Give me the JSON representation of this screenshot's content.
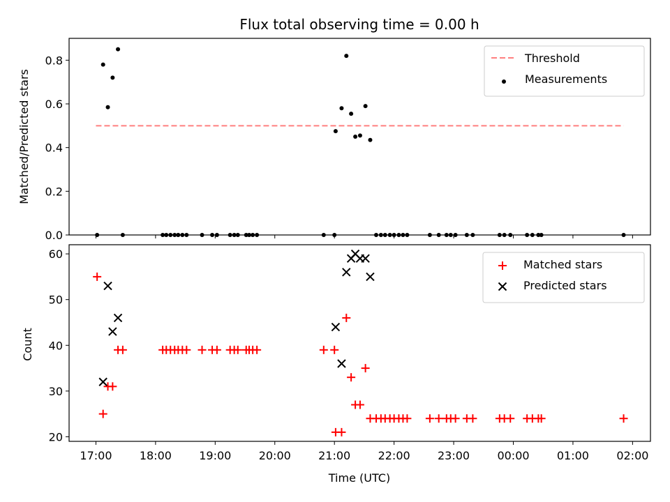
{
  "chart_data": [
    {
      "type": "scatter",
      "title": "Flux total observing time = 0.00 h",
      "ylabel": "Matched/Predicted stars",
      "xlim_hours": [
        16.55,
        26.3
      ],
      "ylim": [
        0.0,
        0.9
      ],
      "yticks": [
        0.0,
        0.2,
        0.4,
        0.6,
        0.8
      ],
      "ytick_labels": [
        "0.0",
        "0.2",
        "0.4",
        "0.6",
        "0.8"
      ],
      "legend_position": "top-right",
      "threshold": {
        "name": "Threshold",
        "value": 0.5,
        "x_range": [
          17.0,
          25.85
        ],
        "color": "#ff7f7f",
        "style": "dashed"
      },
      "series": [
        {
          "name": "Measurements",
          "color": "#000000",
          "marker": "dot",
          "points": [
            [
              17.02,
              0.0
            ],
            [
              17.12,
              0.78
            ],
            [
              17.2,
              0.585
            ],
            [
              17.28,
              0.72
            ],
            [
              17.37,
              0.85
            ],
            [
              17.45,
              0.0
            ],
            [
              18.12,
              0.0
            ],
            [
              18.18,
              0.0
            ],
            [
              18.25,
              0.0
            ],
            [
              18.32,
              0.0
            ],
            [
              18.38,
              0.0
            ],
            [
              18.45,
              0.0
            ],
            [
              18.52,
              0.0
            ],
            [
              18.78,
              0.0
            ],
            [
              18.95,
              0.0
            ],
            [
              19.03,
              0.0
            ],
            [
              19.25,
              0.0
            ],
            [
              19.32,
              0.0
            ],
            [
              19.38,
              0.0
            ],
            [
              19.52,
              0.0
            ],
            [
              19.57,
              0.0
            ],
            [
              19.63,
              0.0
            ],
            [
              19.7,
              0.0
            ],
            [
              20.82,
              0.0
            ],
            [
              21.0,
              0.0
            ],
            [
              21.02,
              0.475
            ],
            [
              21.12,
              0.58
            ],
            [
              21.2,
              0.82
            ],
            [
              21.28,
              0.555
            ],
            [
              21.35,
              0.45
            ],
            [
              21.43,
              0.455
            ],
            [
              21.52,
              0.59
            ],
            [
              21.6,
              0.435
            ],
            [
              21.7,
              0.0
            ],
            [
              21.78,
              0.0
            ],
            [
              21.85,
              0.0
            ],
            [
              21.93,
              0.0
            ],
            [
              22.0,
              0.0
            ],
            [
              22.08,
              0.0
            ],
            [
              22.15,
              0.0
            ],
            [
              22.22,
              0.0
            ],
            [
              22.6,
              0.0
            ],
            [
              22.75,
              0.0
            ],
            [
              22.88,
              0.0
            ],
            [
              22.95,
              0.0
            ],
            [
              23.03,
              0.0
            ],
            [
              23.22,
              0.0
            ],
            [
              23.32,
              0.0
            ],
            [
              23.77,
              0.0
            ],
            [
              23.85,
              0.0
            ],
            [
              23.95,
              0.0
            ],
            [
              24.23,
              0.0
            ],
            [
              24.32,
              0.0
            ],
            [
              24.42,
              0.0
            ],
            [
              24.47,
              0.0
            ],
            [
              25.85,
              0.0
            ]
          ]
        }
      ]
    },
    {
      "type": "scatter",
      "ylabel": "Count",
      "xlabel": "Time (UTC)",
      "xlim_hours": [
        16.55,
        26.3
      ],
      "ylim": [
        19,
        62
      ],
      "yticks": [
        20,
        30,
        40,
        50,
        60
      ],
      "ytick_labels": [
        "20",
        "30",
        "40",
        "50",
        "60"
      ],
      "xticks_hours": [
        17,
        18,
        19,
        20,
        21,
        22,
        23,
        24,
        25,
        26
      ],
      "xtick_labels": [
        "17:00",
        "18:00",
        "19:00",
        "20:00",
        "21:00",
        "22:00",
        "23:00",
        "00:00",
        "01:00",
        "02:00"
      ],
      "legend_position": "top-right",
      "series": [
        {
          "name": "Matched stars",
          "color": "#ff0000",
          "marker": "plus",
          "points": [
            [
              17.02,
              55
            ],
            [
              17.12,
              25
            ],
            [
              17.2,
              31
            ],
            [
              17.28,
              31
            ],
            [
              17.37,
              39
            ],
            [
              17.45,
              39
            ],
            [
              18.12,
              39
            ],
            [
              18.18,
              39
            ],
            [
              18.25,
              39
            ],
            [
              18.32,
              39
            ],
            [
              18.38,
              39
            ],
            [
              18.45,
              39
            ],
            [
              18.52,
              39
            ],
            [
              18.78,
              39
            ],
            [
              18.95,
              39
            ],
            [
              19.03,
              39
            ],
            [
              19.25,
              39
            ],
            [
              19.32,
              39
            ],
            [
              19.38,
              39
            ],
            [
              19.52,
              39
            ],
            [
              19.57,
              39
            ],
            [
              19.63,
              39
            ],
            [
              19.7,
              39
            ],
            [
              20.82,
              39
            ],
            [
              21.0,
              39
            ],
            [
              21.02,
              21
            ],
            [
              21.12,
              21
            ],
            [
              21.2,
              46
            ],
            [
              21.28,
              33
            ],
            [
              21.35,
              27
            ],
            [
              21.43,
              27
            ],
            [
              21.52,
              35
            ],
            [
              21.6,
              24
            ],
            [
              21.7,
              24
            ],
            [
              21.78,
              24
            ],
            [
              21.85,
              24
            ],
            [
              21.93,
              24
            ],
            [
              22.0,
              24
            ],
            [
              22.08,
              24
            ],
            [
              22.15,
              24
            ],
            [
              22.22,
              24
            ],
            [
              22.6,
              24
            ],
            [
              22.75,
              24
            ],
            [
              22.88,
              24
            ],
            [
              22.95,
              24
            ],
            [
              23.03,
              24
            ],
            [
              23.22,
              24
            ],
            [
              23.32,
              24
            ],
            [
              23.77,
              24
            ],
            [
              23.85,
              24
            ],
            [
              23.95,
              24
            ],
            [
              24.23,
              24
            ],
            [
              24.32,
              24
            ],
            [
              24.42,
              24
            ],
            [
              24.47,
              24
            ],
            [
              25.85,
              24
            ]
          ]
        },
        {
          "name": "Predicted stars",
          "color": "#000000",
          "marker": "x",
          "points": [
            [
              17.12,
              32
            ],
            [
              17.2,
              53
            ],
            [
              17.28,
              43
            ],
            [
              17.37,
              46
            ],
            [
              21.02,
              44
            ],
            [
              21.12,
              36
            ],
            [
              21.2,
              56
            ],
            [
              21.28,
              59
            ],
            [
              21.35,
              60
            ],
            [
              21.43,
              59
            ],
            [
              21.52,
              59
            ],
            [
              21.6,
              55
            ]
          ]
        }
      ]
    }
  ]
}
